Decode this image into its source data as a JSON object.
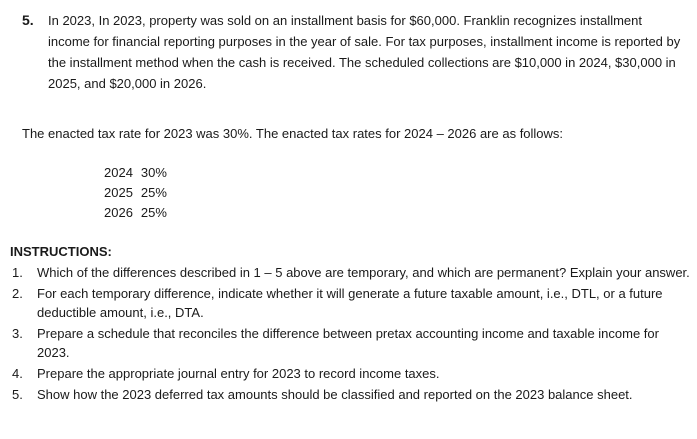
{
  "problem": {
    "number": "5.",
    "text": "In 2023, In 2023, property was sold on an installment basis for $60,000. Franklin recognizes installment income for financial reporting purposes in the year of sale. For tax purposes, installment income is reported by the installment method when the cash is received. The scheduled collections are $10,000 in 2024, $30,000 in 2025, and $20,000 in 2026."
  },
  "rates_intro": "The enacted tax rate for 2023 was 30%. The enacted tax rates for 2024 – 2026 are as follows:",
  "rates": [
    {
      "year": "2024",
      "rate": "30%"
    },
    {
      "year": "2025",
      "rate": "25%"
    },
    {
      "year": "2026",
      "rate": "25%"
    }
  ],
  "instructions": {
    "title": "INSTRUCTIONS:",
    "items": [
      {
        "num": "1.",
        "text": "Which of the differences described in 1 – 5 above are temporary, and which are permanent? Explain your answer."
      },
      {
        "num": "2.",
        "text": "For each temporary difference, indicate whether it will generate a future taxable amount, i.e., DTL, or a future deductible amount, i.e., DTA."
      },
      {
        "num": "3.",
        "text": "Prepare a schedule that reconciles the difference between pretax accounting income and taxable income for 2023."
      },
      {
        "num": "4.",
        "text": "Prepare the appropriate journal entry for 2023 to record income taxes."
      },
      {
        "num": "5.",
        "text": "Show how the 2023 deferred tax amounts should be classified and reported on the 2023 balance sheet."
      }
    ]
  }
}
